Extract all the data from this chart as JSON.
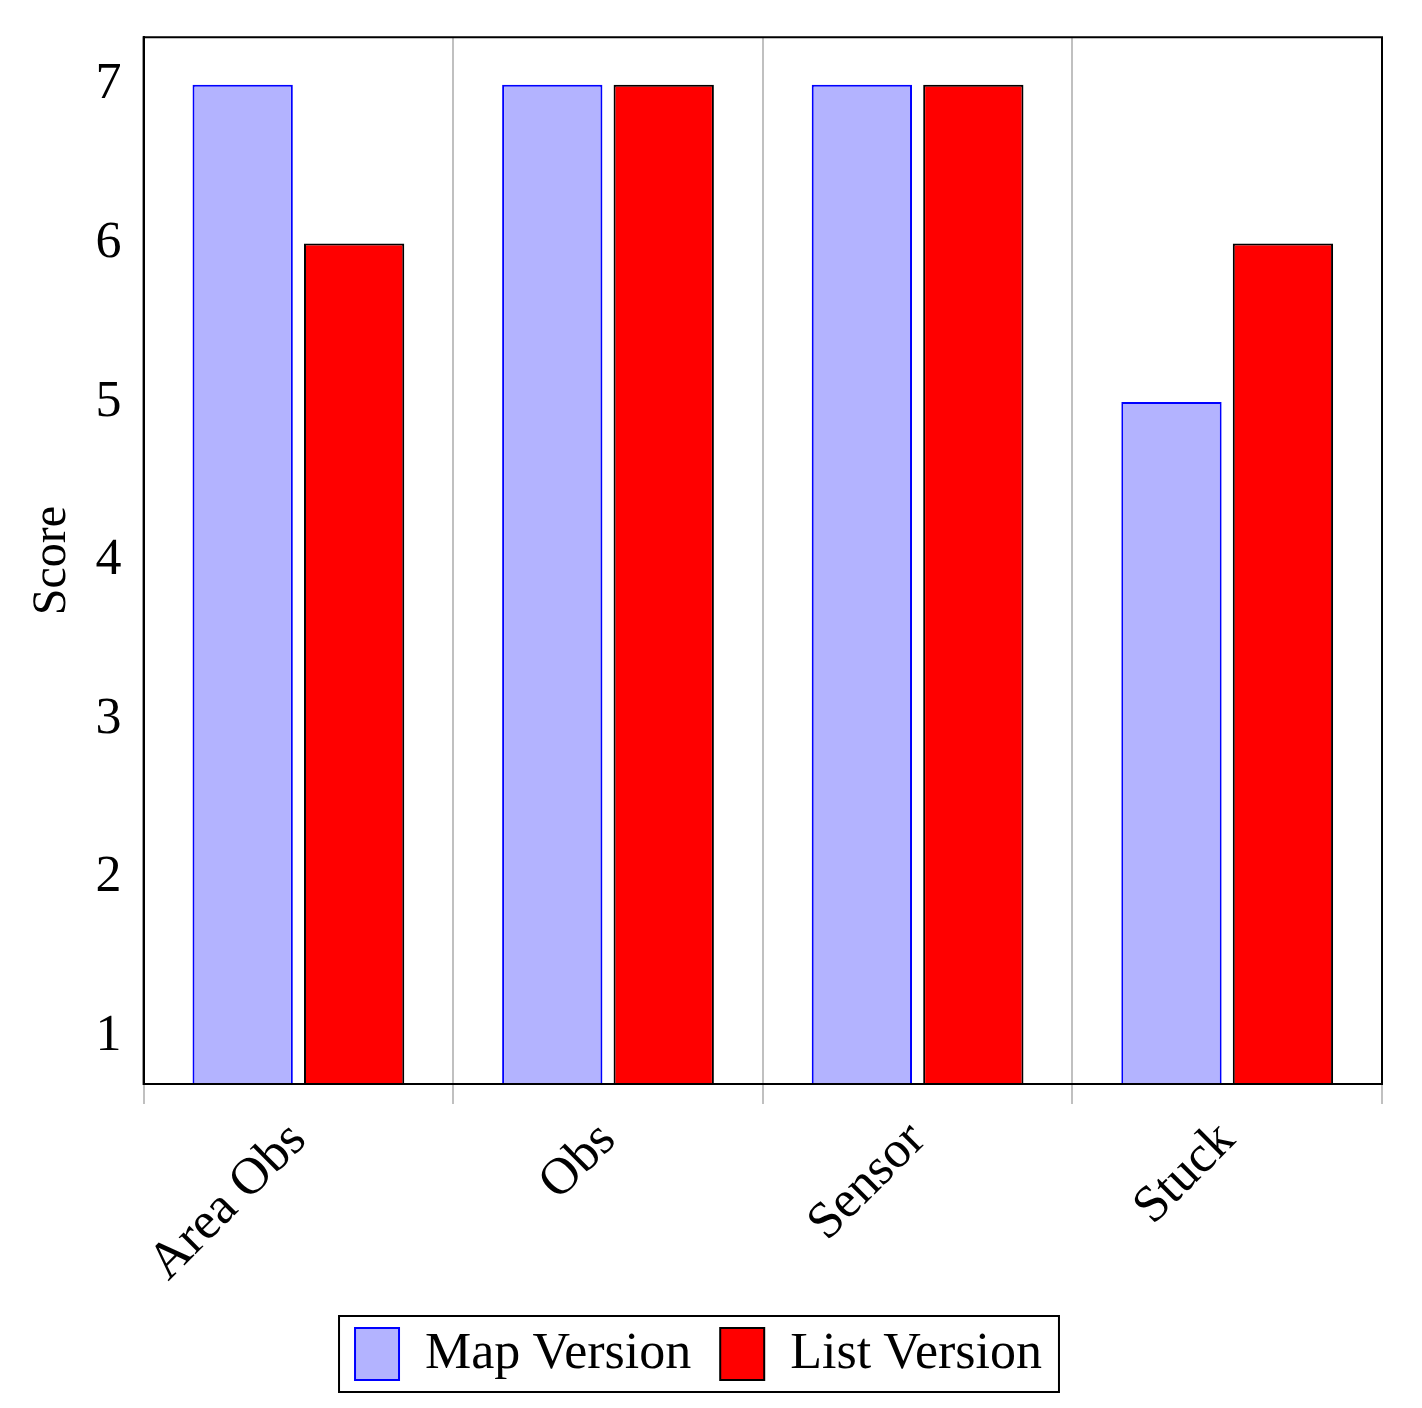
{
  "chart_data": {
    "type": "bar",
    "ylabel": "Score",
    "categories": [
      "Area Obs",
      "Obs",
      "Sensor",
      "Stuck"
    ],
    "series": [
      {
        "name": "Map Version",
        "color": "#b3b3ff",
        "values": [
          7,
          7,
          7,
          5
        ]
      },
      {
        "name": "List Version",
        "color": "#ff0000",
        "values": [
          6,
          7,
          7,
          6
        ]
      }
    ],
    "ylim": [
      0.7,
      7.3
    ],
    "yticks": [
      1,
      2,
      3,
      4,
      5,
      6,
      7
    ],
    "grid": "x",
    "legend": "bottom"
  }
}
